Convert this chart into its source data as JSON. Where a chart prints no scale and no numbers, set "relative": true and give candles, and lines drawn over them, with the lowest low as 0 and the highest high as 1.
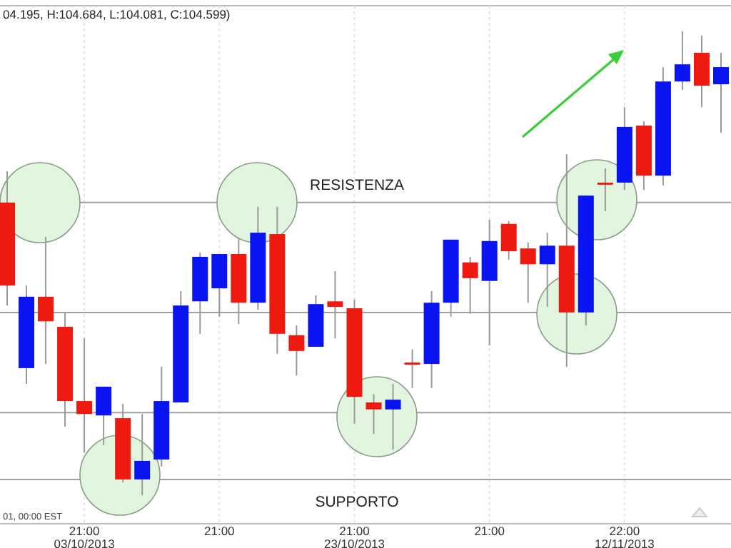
{
  "chart_data": {
    "type": "candlestick",
    "relative": true,
    "grid": "x",
    "categories": [
      null,
      null,
      null,
      null,
      "21:00\n03/10/2013",
      null,
      null,
      null,
      null,
      null,
      null,
      "21:00",
      null,
      null,
      null,
      null,
      null,
      null,
      "21:00\n23/10/2013",
      null,
      null,
      null,
      null,
      null,
      null,
      "21:00",
      null,
      null,
      null,
      null,
      null,
      null,
      "22:00\n12/11/2013",
      null,
      null,
      null,
      null,
      null
    ],
    "ohlc": [
      [
        0.631,
        0.698,
        0.409,
        0.452
      ],
      [
        0.274,
        0.452,
        0.24,
        0.428
      ],
      [
        0.428,
        0.557,
        0.283,
        0.375
      ],
      [
        0.363,
        0.394,
        0.148,
        0.203
      ],
      [
        0.203,
        0.338,
        0.092,
        0.175
      ],
      [
        0.172,
        0.234,
        0.108,
        0.234
      ],
      [
        0.166,
        0.197,
        0.028,
        0.034
      ],
      [
        0.034,
        0.175,
        0,
        0.074
      ],
      [
        0.077,
        0.277,
        0.062,
        0.203
      ],
      [
        0.2,
        0.44,
        0.2,
        0.409
      ],
      [
        0.418,
        0.523,
        0.348,
        0.514
      ],
      [
        0.446,
        0.52,
        0.385,
        0.52
      ],
      [
        0.52,
        0.554,
        0.369,
        0.415
      ],
      [
        0.415,
        0.622,
        0.4,
        0.566
      ],
      [
        0.563,
        0.622,
        0.305,
        0.348
      ],
      [
        0.345,
        0.366,
        0.258,
        0.311
      ],
      [
        0.32,
        0.431,
        0.32,
        0.412
      ],
      [
        0.418,
        0.483,
        0.338,
        0.406
      ],
      [
        0.403,
        0.422,
        0.154,
        0.212
      ],
      [
        0.2,
        0.218,
        0.132,
        0.185
      ],
      [
        0.185,
        0.24,
        0.098,
        0.206
      ],
      [
        0.286,
        0.314,
        0.231,
        0.283
      ],
      [
        0.283,
        0.44,
        0.231,
        0.415
      ],
      [
        0.415,
        0.551,
        0.385,
        0.551
      ],
      [
        0.502,
        0.514,
        0.391,
        0.468
      ],
      [
        0.462,
        0.594,
        0.323,
        0.548
      ],
      [
        0.585,
        0.591,
        0.508,
        0.526
      ],
      [
        0.532,
        0.545,
        0.415,
        0.498
      ],
      [
        0.498,
        0.566,
        0.406,
        0.538
      ],
      [
        0.538,
        0.735,
        0.277,
        0.394
      ],
      [
        0.394,
        0.646,
        0.366,
        0.646
      ],
      [
        0.674,
        0.705,
        0.612,
        0.671
      ],
      [
        0.674,
        0.837,
        0.658,
        0.794
      ],
      [
        0.797,
        0.806,
        0.658,
        0.689
      ],
      [
        0.689,
        0.923,
        0.668,
        0.892
      ],
      [
        0.892,
        1,
        0.874,
        0.929
      ],
      [
        0.954,
        0.991,
        0.837,
        0.883
      ],
      [
        0.886,
        0.954,
        0.782,
        0.923
      ]
    ],
    "colors": [
      "#ee1a10",
      "#0a14f0",
      "#ee1a10",
      "#ee1a10",
      "#ee1a10",
      "#0a14f0",
      "#ee1a10",
      "#0a14f0",
      "#0a14f0",
      "#0a14f0",
      "#0a14f0",
      "#0a14f0",
      "#ee1a10",
      "#0a14f0",
      "#ee1a10",
      "#ee1a10",
      "#0a14f0",
      "#ee1a10",
      "#ee1a10",
      "#ee1a10",
      "#0a14f0",
      "#ee1a10",
      "#0a14f0",
      "#0a14f0",
      "#ee1a10",
      "#0a14f0",
      "#ee1a10",
      "#ee1a10",
      "#0a14f0",
      "#ee1a10",
      "#0a14f0",
      "#ee1a10",
      "#0a14f0",
      "#ee1a10",
      "#0a14f0",
      "#0a14f0",
      "#ee1a10",
      "#0a14f0"
    ],
    "ref_lines": [
      {
        "axis": "y",
        "value": 0.631,
        "label": "RESISTENZA",
        "color": "#a0a0a0"
      },
      {
        "axis": "y",
        "value": 0.394,
        "color": "#a0a0a0"
      },
      {
        "axis": "y",
        "value": 0.178,
        "color": "#a0a0a0"
      },
      {
        "axis": "y",
        "value": 0.034,
        "label": "SUPPORTO",
        "color": "#a0a0a0"
      }
    ],
    "annotations": [
      "04.195, H:104.684, L:104.081, C:104.599)",
      "01, 00:00 EST"
    ]
  }
}
